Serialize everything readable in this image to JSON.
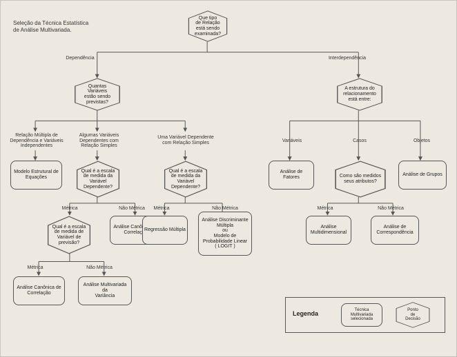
{
  "title": "Seleção da Técnica Estatística\nde Análise Multivariada.",
  "nodes": {
    "root": "Que tipo\nde Relação\nestá sendo\nexaminada?",
    "depLabel": "Dependência",
    "interLabel": "Interdependência",
    "qVars": "Quantas Variáveis\nestão sendo\nprevistas?",
    "estrutura": "A estrutura do\nrelacionamento\nestá entre:",
    "relMult": "Relação Múltipla de\nDependência e Variáveis\nIndependentes",
    "algVars": "Algumas Variáveis\nDependentes com\nRelação Simples",
    "umaVar": "Uma Variável Dependente\ncom Relação Simples",
    "variaveis": "Variáveis",
    "casos": "Casos",
    "objetos": "Objetos",
    "modeloEq": "Modelo Estrutural de\nEquações",
    "escalaDep": "Qual é a escala\nde medida da\nVariável\nDependente?",
    "escalaDep2": "Qual é a escala\nde medida da\nVariável\nDependente?",
    "analiseFatores": "Análise de\nFatores",
    "comoMedidos": "Como são medidos\nseus atributos?",
    "analiseGrupos": "Análise de Grupos",
    "metrica": "Métrica",
    "naoMetrica": "Não Métrica",
    "escalaPrev": "Qual é a escala\nde medida de\nVariável de\nprevisão?",
    "canonicaCorr": "Análise Canônica de\nCorrelação",
    "regressao": "Regressão Múltipla",
    "discriminante": "Análise Discriminante\nMúltipla\nou\nModelo de\nProbabilidade Linear\n( LOGIT )",
    "multidim": "Análise\nMultidimensional",
    "corresp": "Análise de\nCorrespondência",
    "canonicaCorr2": "Análise Canônica de\nCorrelação",
    "multiVar": "Análise Multivariada\nda\nVariância"
  },
  "legend": {
    "title": "Legenda",
    "tecnica": "Técnica\nMultivariada\nselecionada",
    "ponto": "Ponto\nde\nDecisão"
  },
  "colors": {
    "bg": "#ede9e0",
    "line": "#555555",
    "text": "#222222"
  }
}
